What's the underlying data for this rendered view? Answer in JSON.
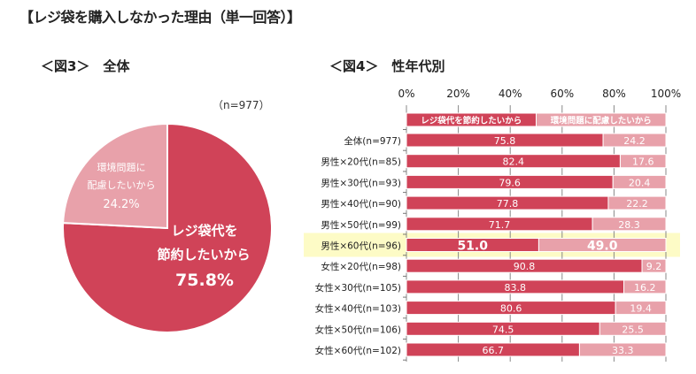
{
  "title": "【レジ袋を購入しなかった理由（単一回答）】",
  "pie_section": {
    "heading": "＜図3＞　全体",
    "n_label": "（n=977）"
  },
  "bar_section": {
    "heading": "＜図4＞　性年代別"
  },
  "colors": {
    "save_money": "#d04358",
    "environment": "#e8a1aa",
    "highlight": "#fdfbc6"
  },
  "chart_data": [
    {
      "type": "pie",
      "slices": [
        {
          "label_lines": [
            "レジ袋代を",
            "節約したいから"
          ],
          "value": 75.8,
          "value_label": "75.8%"
        },
        {
          "label_lines": [
            "環境問題に",
            "配慮したいから"
          ],
          "value": 24.2,
          "value_label": "24.2%"
        }
      ]
    },
    {
      "type": "bar",
      "stacked": true,
      "orientation": "horizontal",
      "xlim": [
        0,
        100
      ],
      "x_ticks": [
        "0%",
        "20%",
        "40%",
        "60%",
        "80%",
        "100%"
      ],
      "legend": [
        "レジ袋代を節約したいから",
        "環境問題に配慮したいから"
      ],
      "legend_placement": "top",
      "highlighted_category": "男性×60代(n=96)",
      "categories": [
        "全体(n=977)",
        "男性×20代(n=85)",
        "男性×30代(n=93)",
        "男性×40代(n=90)",
        "男性×50代(n=99)",
        "男性×60代(n=96)",
        "女性×20代(n=98)",
        "女性×30代(n=105)",
        "女性×40代(n=103)",
        "女性×50代(n=106)",
        "女性×60代(n=102)"
      ],
      "series": [
        {
          "name": "レジ袋代を節約したいから",
          "values": [
            75.8,
            82.4,
            79.6,
            77.8,
            71.7,
            51.0,
            90.8,
            83.8,
            80.6,
            74.5,
            66.7
          ]
        },
        {
          "name": "環境問題に配慮したいから",
          "values": [
            24.2,
            17.6,
            20.4,
            22.2,
            28.3,
            49.0,
            9.2,
            16.2,
            19.4,
            25.5,
            33.3
          ]
        }
      ]
    }
  ]
}
